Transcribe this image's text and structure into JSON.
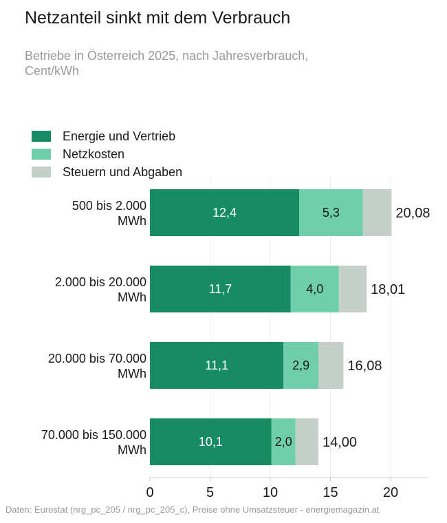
{
  "title": "Netzanteil sinkt mit dem Verbrauch",
  "subtitle": "Betriebe in Österreich 2025, nach Jahresverbrauch, Cent/kWh",
  "source": "Daten: Eurostat (nrg_pc_205 / nrg_pc_205_c), Preise ohne Umsatzsteuer - energiemagazin.at",
  "colors": {
    "energie": "#168b64",
    "netz": "#6fcfab",
    "steuern": "#c5d0ca",
    "grid": "#ececec",
    "axis": "#cccccc"
  },
  "chart_data": {
    "type": "bar",
    "orientation": "horizontal",
    "stacked": true,
    "categories": [
      [
        "500 bis 2.000",
        "MWh"
      ],
      [
        "2.000 bis 20.000",
        "MWh"
      ],
      [
        "20.000 bis 70.000",
        "MWh"
      ],
      [
        "70.000 bis 150.000",
        "MWh"
      ]
    ],
    "series": [
      {
        "name": "Energie und Vertrieb",
        "values": [
          12.4,
          11.7,
          11.1,
          10.1
        ],
        "labels": [
          "12,4",
          "11,7",
          "11,1",
          "10,1"
        ]
      },
      {
        "name": "Netzkosten",
        "values": [
          5.3,
          4.0,
          2.9,
          2.0
        ],
        "labels": [
          "5,3",
          "4,0",
          "2,9",
          "2,0"
        ]
      },
      {
        "name": "Steuern und Abgaben",
        "values": [
          2.38,
          2.31,
          2.08,
          1.9
        ],
        "labels": [
          "",
          "",
          "",
          ""
        ]
      }
    ],
    "totals": [
      "20,08",
      "18,01",
      "16,08",
      "14,00"
    ],
    "xticks": [
      0,
      5,
      10,
      15,
      20
    ],
    "xlim": [
      0,
      23
    ],
    "grid": true,
    "legend_position": "top-left"
  }
}
